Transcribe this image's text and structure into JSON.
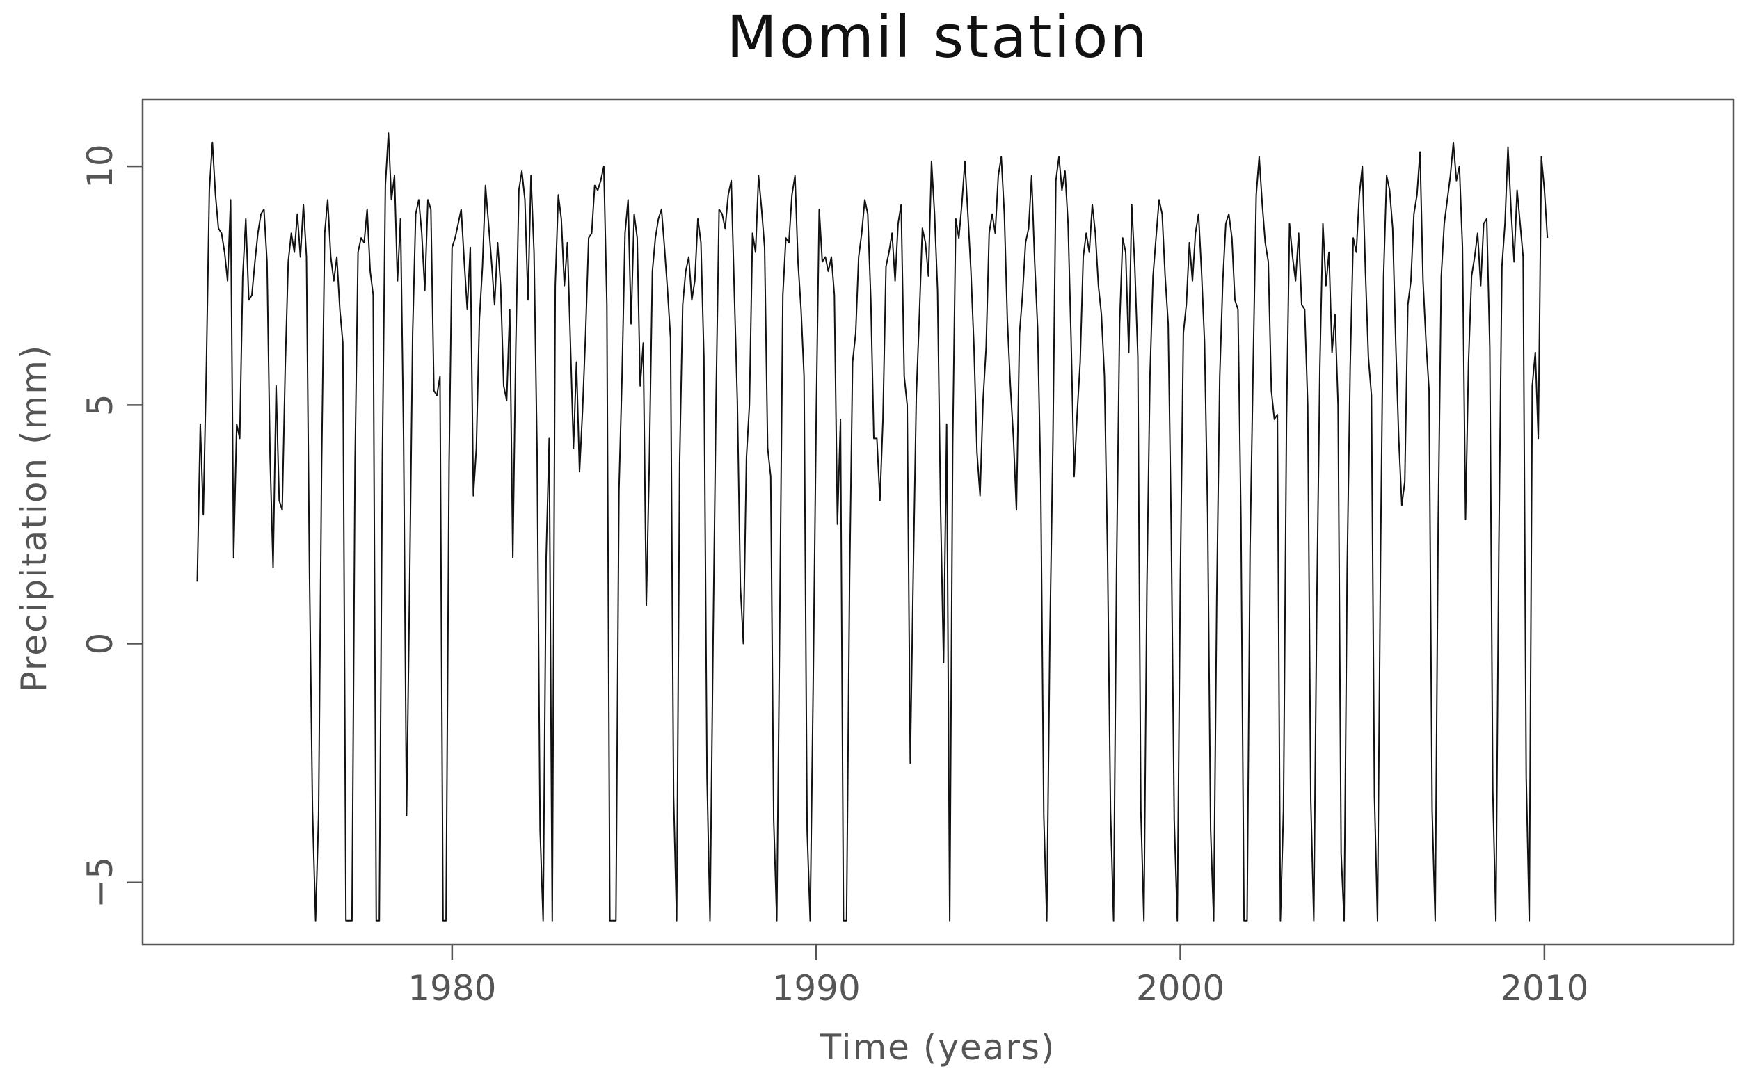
{
  "chart_data": {
    "type": "line",
    "title": "Momil station",
    "xlabel": "Time (years)",
    "ylabel": "Precipitation (mm)",
    "xlim": [
      1971.5,
      2015.2
    ],
    "ylim": [
      -6.3,
      11.4
    ],
    "x_ticks": [
      1980,
      1990,
      2000,
      2010
    ],
    "y_ticks": [
      -5,
      0,
      5,
      10
    ],
    "x_tick_labels": [
      "1980",
      "1990",
      "2000",
      "2010"
    ],
    "y_tick_labels": [
      "−5",
      "0",
      "5",
      "10"
    ],
    "grid": false,
    "legend": "none",
    "line_color": "#111111",
    "series": [
      {
        "x_start": 1973.0,
        "x_step": 0.0833333,
        "values": [
          1.3,
          4.6,
          2.7,
          5.8,
          9.5,
          10.5,
          9.4,
          8.7,
          8.6,
          8.2,
          7.6,
          9.3,
          1.8,
          4.6,
          4.3,
          7.7,
          8.9,
          7.2,
          7.3,
          8.0,
          8.6,
          9.0,
          9.1,
          8.0,
          3.9,
          1.6,
          5.4,
          3.0,
          2.8,
          5.8,
          8.0,
          8.6,
          8.2,
          9.0,
          8.1,
          9.2,
          8.1,
          1.4,
          -3.5,
          -5.8,
          -3.6,
          3.8,
          8.6,
          9.3,
          8.1,
          7.6,
          8.1,
          7.0,
          6.3,
          -5.8,
          -5.8,
          -5.8,
          3.8,
          8.2,
          8.5,
          8.4,
          9.1,
          7.8,
          7.3,
          -5.8,
          -5.8,
          3.8,
          9.6,
          10.7,
          9.3,
          9.8,
          7.6,
          8.9,
          4.3,
          -3.6,
          1.3,
          6.5,
          9.0,
          9.3,
          8.6,
          7.4,
          9.3,
          9.1,
          5.3,
          5.2,
          5.6,
          -5.8,
          -5.8,
          3.8,
          8.3,
          8.5,
          8.8,
          9.1,
          8.0,
          7.0,
          8.3,
          3.1,
          4.1,
          6.8,
          7.9,
          9.6,
          8.8,
          8.0,
          7.1,
          8.4,
          7.5,
          5.4,
          5.1,
          7.0,
          1.8,
          6.2,
          9.5,
          9.9,
          9.3,
          7.2,
          9.8,
          8.2,
          4.0,
          -3.9,
          -5.8,
          1.8,
          4.3,
          -5.8,
          7.5,
          9.4,
          8.9,
          7.5,
          8.4,
          6.3,
          4.1,
          5.9,
          3.6,
          4.9,
          6.5,
          8.5,
          8.6,
          9.6,
          9.5,
          9.7,
          10.0,
          7.1,
          -5.8,
          -5.8,
          -5.8,
          3.2,
          5.6,
          8.6,
          9.3,
          6.7,
          9.0,
          8.5,
          5.4,
          6.3,
          0.8,
          3.8,
          7.8,
          8.5,
          8.9,
          9.1,
          8.3,
          7.4,
          6.4,
          -3.2,
          -5.8,
          3.8,
          7.1,
          7.8,
          8.1,
          7.2,
          7.6,
          8.9,
          8.4,
          6.0,
          -2.8,
          -5.8,
          0.0,
          5.2,
          9.1,
          9.0,
          8.7,
          9.4,
          9.7,
          7.4,
          5.1,
          1.2,
          0.0,
          3.9,
          5.0,
          8.6,
          8.2,
          9.8,
          9.1,
          8.3,
          4.1,
          3.5,
          -3.7,
          -5.8,
          0.5,
          7.3,
          8.5,
          8.4,
          9.4,
          9.8,
          8.0,
          7.0,
          5.6,
          -3.9,
          -5.8,
          -0.9,
          4.8,
          9.1,
          8.0,
          8.1,
          7.8,
          8.1,
          7.3,
          2.5,
          4.7,
          -5.8,
          -5.8,
          1.4,
          5.9,
          6.5,
          8.1,
          8.6,
          9.3,
          9.0,
          7.2,
          4.3,
          4.3,
          3.0,
          4.7,
          7.9,
          8.2,
          8.6,
          7.6,
          8.8,
          9.2,
          5.6,
          5.0,
          -2.5,
          1.5,
          5.2,
          6.9,
          8.7,
          8.4,
          7.7,
          10.1,
          9.0,
          7.4,
          2.8,
          -0.4,
          4.6,
          -5.8,
          4.2,
          8.9,
          8.5,
          9.2,
          10.1,
          9.0,
          7.8,
          6.2,
          4.0,
          3.1,
          5.1,
          6.2,
          8.6,
          9.0,
          8.6,
          9.8,
          10.2,
          9.0,
          6.8,
          5.4,
          4.3,
          2.8,
          6.5,
          7.3,
          8.4,
          8.7,
          9.8,
          8.0,
          6.6,
          3.4,
          -3.6,
          -5.8,
          0.1,
          4.2,
          9.7,
          10.2,
          9.5,
          9.9,
          8.8,
          6.4,
          3.5,
          4.8,
          5.9,
          8.1,
          8.6,
          8.2,
          9.2,
          8.6,
          7.5,
          6.9,
          5.6,
          1.9,
          -3.5,
          -5.8,
          1.6,
          6.7,
          8.5,
          8.2,
          6.1,
          9.2,
          7.9,
          6.0,
          -3.5,
          -5.8,
          1.2,
          5.6,
          7.7,
          8.5,
          9.3,
          9.0,
          7.7,
          6.7,
          2.5,
          -3.7,
          -5.8,
          1.3,
          6.5,
          7.1,
          8.4,
          7.6,
          8.6,
          9.0,
          7.8,
          6.3,
          2.7,
          -3.9,
          -5.8,
          1.0,
          5.6,
          7.6,
          8.8,
          9.0,
          8.5,
          7.2,
          7.0,
          2.6,
          -5.8,
          -5.8,
          2.0,
          5.8,
          9.4,
          10.2,
          9.2,
          8.4,
          8.0,
          5.3,
          4.7,
          4.8,
          -5.8,
          -3.5,
          4.7,
          8.8,
          8.1,
          7.6,
          8.6,
          7.1,
          7.0,
          5.0,
          -3.3,
          -5.8,
          0.9,
          5.8,
          8.8,
          7.5,
          8.2,
          6.1,
          6.9,
          5.0,
          -4.4,
          -5.8,
          1.6,
          5.8,
          8.5,
          8.2,
          9.4,
          10.0,
          7.8,
          6.0,
          5.2,
          -3.2,
          -5.8,
          1.9,
          7.7,
          9.8,
          9.5,
          8.7,
          6.3,
          4.3,
          2.9,
          3.4,
          7.1,
          7.6,
          9.0,
          9.4,
          10.3,
          7.6,
          6.3,
          5.3,
          -3.5,
          -5.8,
          2.5,
          7.7,
          8.8,
          9.3,
          9.8,
          10.5,
          9.7,
          10.0,
          8.3,
          2.6,
          5.9,
          7.7,
          8.1,
          8.6,
          7.5,
          8.8,
          8.9,
          6.2,
          -3.1,
          -5.8,
          2.0,
          7.9,
          8.8,
          10.4,
          9.1,
          8.0,
          9.5,
          8.8,
          8.1,
          -2.8,
          -5.8,
          5.4,
          6.1,
          4.3,
          10.2,
          9.5,
          8.5
        ]
      }
    ]
  }
}
